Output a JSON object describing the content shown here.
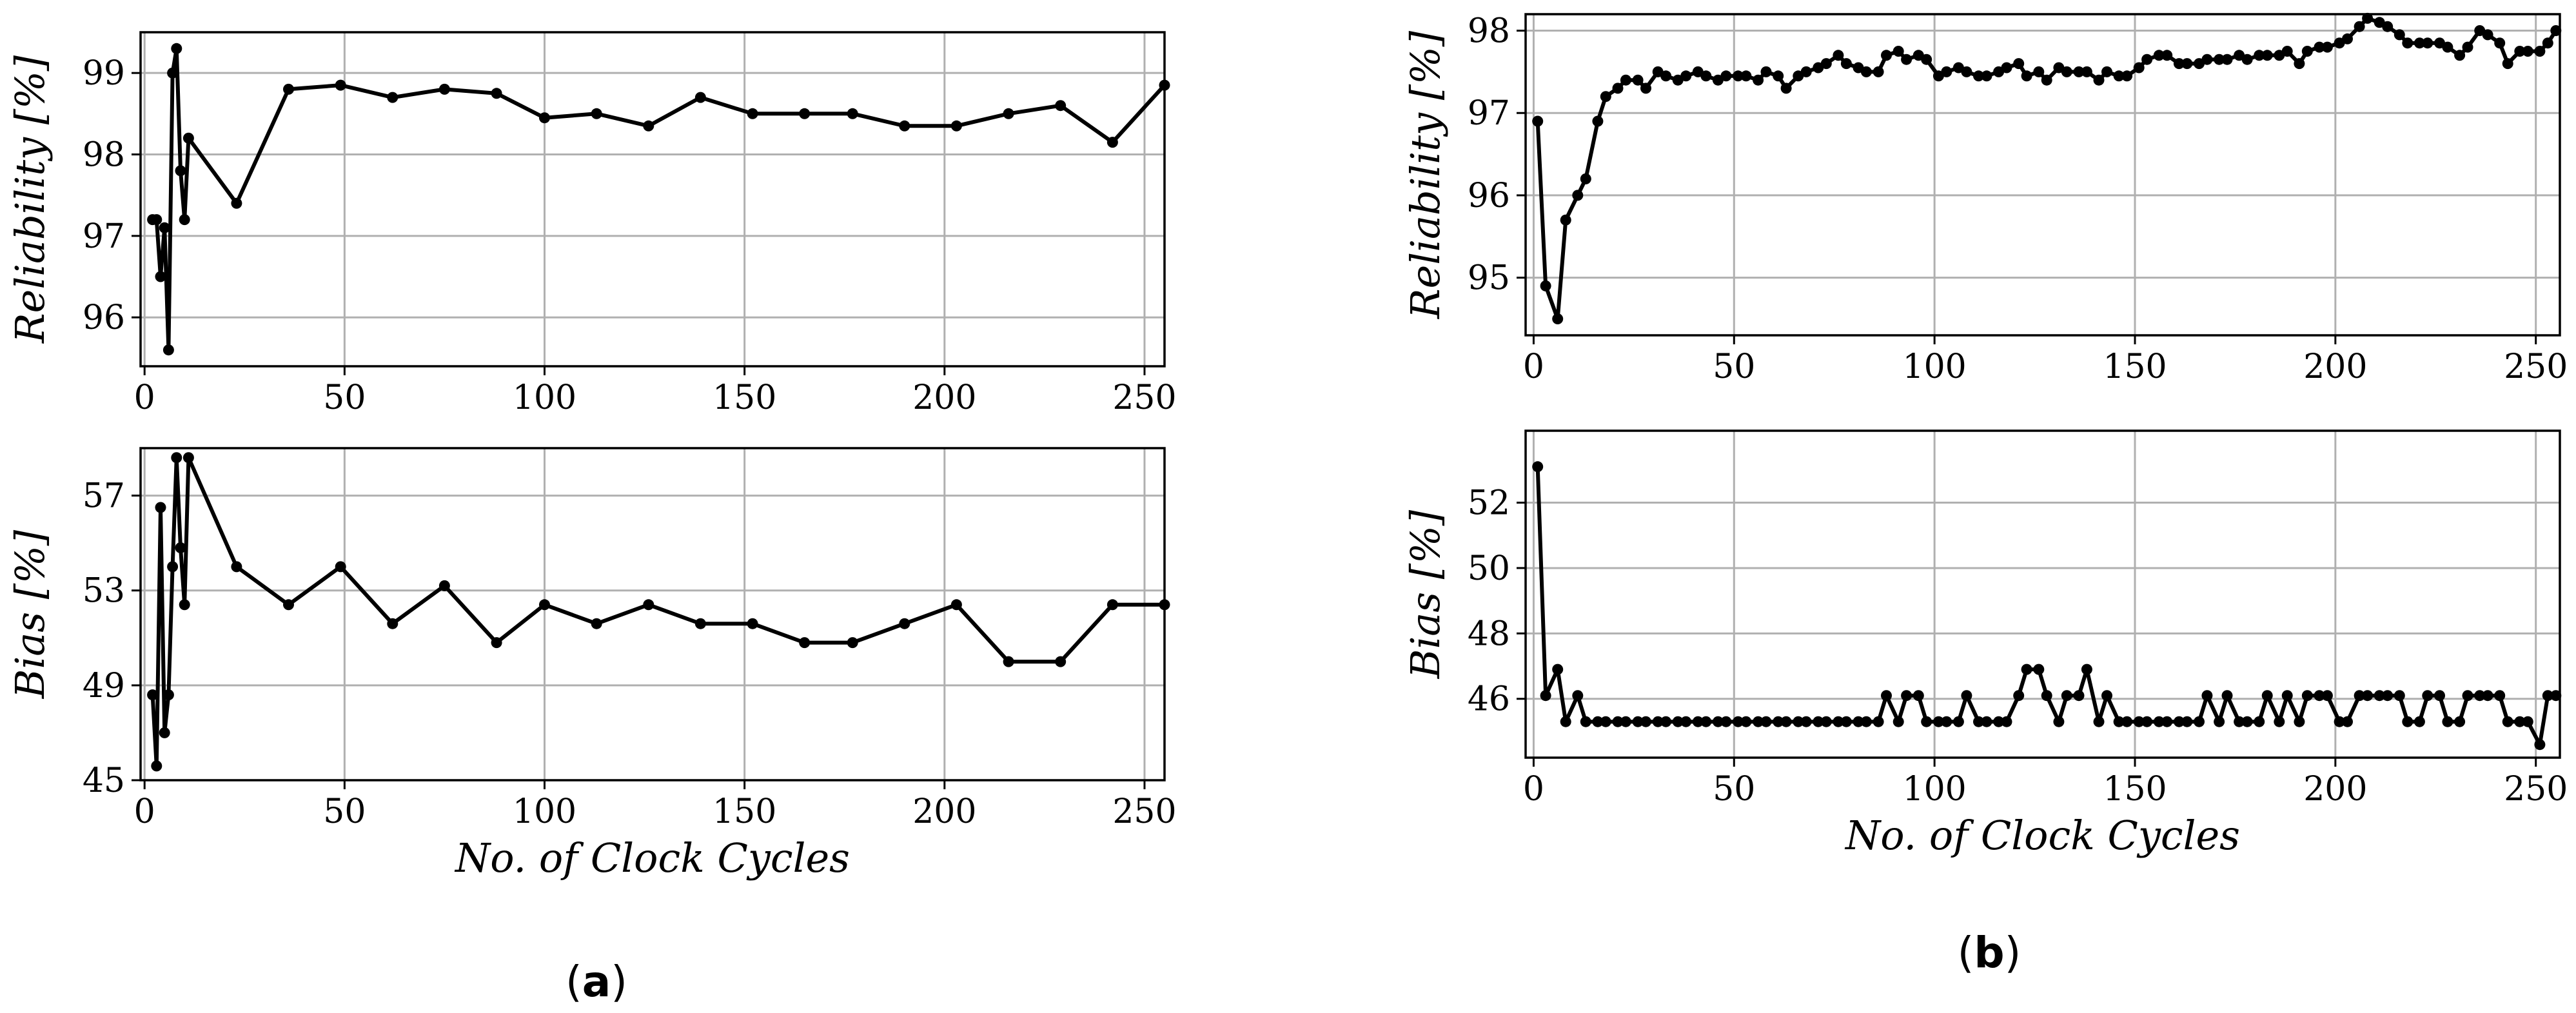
{
  "figure": {
    "captions": [
      {
        "prefix": "(",
        "letter": "a",
        "suffix": ")"
      },
      {
        "prefix": "(",
        "letter": "b",
        "suffix": ")"
      }
    ]
  },
  "style": {
    "line_color": "#000000",
    "grid_color": "#b0b0b0"
  },
  "chart_data": [
    {
      "type": "line",
      "panel": "a",
      "xlabel": "",
      "ylabel": "Reliability [%]",
      "xlim": [
        -1,
        255
      ],
      "ylim": [
        95.4,
        99.5
      ],
      "xticks": [
        0,
        50,
        100,
        150,
        200,
        250
      ],
      "yticks": [
        96,
        97,
        98,
        99
      ],
      "grid": true,
      "series": [
        {
          "x": [
            2,
            3,
            4,
            5,
            6,
            7,
            8,
            9,
            10,
            11,
            23,
            36,
            49,
            62,
            75,
            88,
            100,
            113,
            126,
            139,
            152,
            165,
            177,
            190,
            203,
            216,
            229,
            242,
            255
          ],
          "y": [
            97.2,
            97.2,
            96.5,
            97.1,
            95.6,
            99.0,
            99.3,
            97.8,
            97.2,
            98.2,
            97.4,
            98.8,
            98.85,
            98.7,
            98.8,
            98.75,
            98.45,
            98.5,
            98.35,
            98.7,
            98.5,
            98.5,
            98.5,
            98.35,
            98.35,
            98.5,
            98.6,
            98.15,
            98.85
          ]
        }
      ]
    },
    {
      "type": "line",
      "panel": "a",
      "xlabel": "No. of Clock Cycles",
      "ylabel": "Bias [%]",
      "xlim": [
        -1,
        255
      ],
      "ylim": [
        45,
        59
      ],
      "xticks": [
        0,
        50,
        100,
        150,
        200,
        250
      ],
      "yticks": [
        45,
        49,
        53,
        57
      ],
      "grid": true,
      "series": [
        {
          "x": [
            2,
            3,
            4,
            5,
            6,
            7,
            8,
            9,
            10,
            11,
            23,
            36,
            49,
            62,
            75,
            88,
            100,
            113,
            126,
            139,
            152,
            165,
            177,
            190,
            203,
            216,
            229,
            242,
            255
          ],
          "y": [
            48.6,
            45.6,
            56.5,
            47.0,
            48.6,
            54.0,
            58.6,
            54.8,
            52.4,
            58.6,
            54.0,
            52.4,
            54.0,
            51.6,
            53.2,
            50.8,
            52.4,
            51.6,
            52.4,
            51.6,
            51.6,
            50.8,
            50.8,
            51.6,
            52.4,
            50.0,
            50.0,
            52.4,
            52.4
          ]
        }
      ]
    },
    {
      "type": "line",
      "panel": "b",
      "xlabel": "",
      "ylabel": "Reliability [%]",
      "xlim": [
        -2,
        256
      ],
      "ylim": [
        94.3,
        98.2
      ],
      "xticks": [
        0,
        50,
        100,
        150,
        200,
        250
      ],
      "yticks": [
        95,
        96,
        97,
        98
      ],
      "grid": true,
      "series": [
        {
          "x": [
            1,
            3,
            6,
            8,
            11,
            13,
            16,
            18,
            21,
            23,
            26,
            28,
            31,
            33,
            36,
            38,
            41,
            43,
            46,
            48,
            51,
            53,
            56,
            58,
            61,
            63,
            66,
            68,
            71,
            73,
            76,
            78,
            81,
            83,
            86,
            88,
            91,
            93,
            96,
            98,
            101,
            103,
            106,
            108,
            111,
            113,
            116,
            118,
            121,
            123,
            126,
            128,
            131,
            133,
            136,
            138,
            141,
            143,
            146,
            148,
            151,
            153,
            156,
            158,
            161,
            163,
            166,
            168,
            171,
            173,
            176,
            178,
            181,
            183,
            186,
            188,
            191,
            193,
            196,
            198,
            201,
            203,
            206,
            208,
            211,
            213,
            216,
            218,
            221,
            223,
            226,
            228,
            231,
            233,
            236,
            238,
            241,
            243,
            246,
            248,
            251,
            253,
            255
          ],
          "y": [
            96.9,
            94.9,
            94.5,
            95.7,
            96.0,
            96.2,
            96.9,
            97.2,
            97.3,
            97.4,
            97.4,
            97.3,
            97.5,
            97.45,
            97.4,
            97.45,
            97.5,
            97.45,
            97.4,
            97.45,
            97.45,
            97.45,
            97.4,
            97.5,
            97.45,
            97.3,
            97.45,
            97.5,
            97.55,
            97.6,
            97.7,
            97.6,
            97.55,
            97.5,
            97.5,
            97.7,
            97.75,
            97.65,
            97.7,
            97.65,
            97.45,
            97.5,
            97.55,
            97.5,
            97.45,
            97.45,
            97.5,
            97.55,
            97.6,
            97.45,
            97.5,
            97.4,
            97.55,
            97.5,
            97.5,
            97.5,
            97.4,
            97.5,
            97.45,
            97.45,
            97.55,
            97.65,
            97.7,
            97.7,
            97.6,
            97.6,
            97.6,
            97.65,
            97.65,
            97.65,
            97.7,
            97.65,
            97.7,
            97.7,
            97.7,
            97.75,
            97.6,
            97.75,
            97.8,
            97.8,
            97.85,
            97.9,
            98.05,
            98.15,
            98.1,
            98.05,
            97.95,
            97.85,
            97.85,
            97.85,
            97.85,
            97.8,
            97.7,
            97.8,
            98.0,
            97.95,
            97.85,
            97.6,
            97.75,
            97.75,
            97.75,
            97.85,
            98.0
          ]
        }
      ]
    },
    {
      "type": "line",
      "panel": "b",
      "xlabel": "No. of Clock Cycles",
      "ylabel": "Bias [%]",
      "xlim": [
        -2,
        256
      ],
      "ylim": [
        44.2,
        54.2
      ],
      "xticks": [
        0,
        50,
        100,
        150,
        200,
        250
      ],
      "yticks": [
        46,
        48,
        50,
        52
      ],
      "grid": true,
      "series": [
        {
          "x": [
            1,
            3,
            6,
            8,
            11,
            13,
            16,
            18,
            21,
            23,
            26,
            28,
            31,
            33,
            36,
            38,
            41,
            43,
            46,
            48,
            51,
            53,
            56,
            58,
            61,
            63,
            66,
            68,
            71,
            73,
            76,
            78,
            81,
            83,
            86,
            88,
            91,
            93,
            96,
            98,
            101,
            103,
            106,
            108,
            111,
            113,
            116,
            118,
            121,
            123,
            126,
            128,
            131,
            133,
            136,
            138,
            141,
            143,
            146,
            148,
            151,
            153,
            156,
            158,
            161,
            163,
            166,
            168,
            171,
            173,
            176,
            178,
            181,
            183,
            186,
            188,
            191,
            193,
            196,
            198,
            201,
            203,
            206,
            208,
            211,
            213,
            216,
            218,
            221,
            223,
            226,
            228,
            231,
            233,
            236,
            238,
            241,
            243,
            246,
            248,
            251,
            253,
            255
          ],
          "y": [
            53.1,
            46.1,
            46.9,
            45.3,
            46.1,
            45.3,
            45.3,
            45.3,
            45.3,
            45.3,
            45.3,
            45.3,
            45.3,
            45.3,
            45.3,
            45.3,
            45.3,
            45.3,
            45.3,
            45.3,
            45.3,
            45.3,
            45.3,
            45.3,
            45.3,
            45.3,
            45.3,
            45.3,
            45.3,
            45.3,
            45.3,
            45.3,
            45.3,
            45.3,
            45.3,
            46.1,
            45.3,
            46.1,
            46.1,
            45.3,
            45.3,
            45.3,
            45.3,
            46.1,
            45.3,
            45.3,
            45.3,
            45.3,
            46.1,
            46.9,
            46.9,
            46.1,
            45.3,
            46.1,
            46.1,
            46.9,
            45.3,
            46.1,
            45.3,
            45.3,
            45.3,
            45.3,
            45.3,
            45.3,
            45.3,
            45.3,
            45.3,
            46.1,
            45.3,
            46.1,
            45.3,
            45.3,
            45.3,
            46.1,
            45.3,
            46.1,
            45.3,
            46.1,
            46.1,
            46.1,
            45.3,
            45.3,
            46.1,
            46.1,
            46.1,
            46.1,
            46.1,
            45.3,
            45.3,
            46.1,
            46.1,
            45.3,
            45.3,
            46.1,
            46.1,
            46.1,
            46.1,
            45.3,
            45.3,
            45.3,
            44.6,
            46.1,
            46.1
          ]
        }
      ]
    }
  ]
}
